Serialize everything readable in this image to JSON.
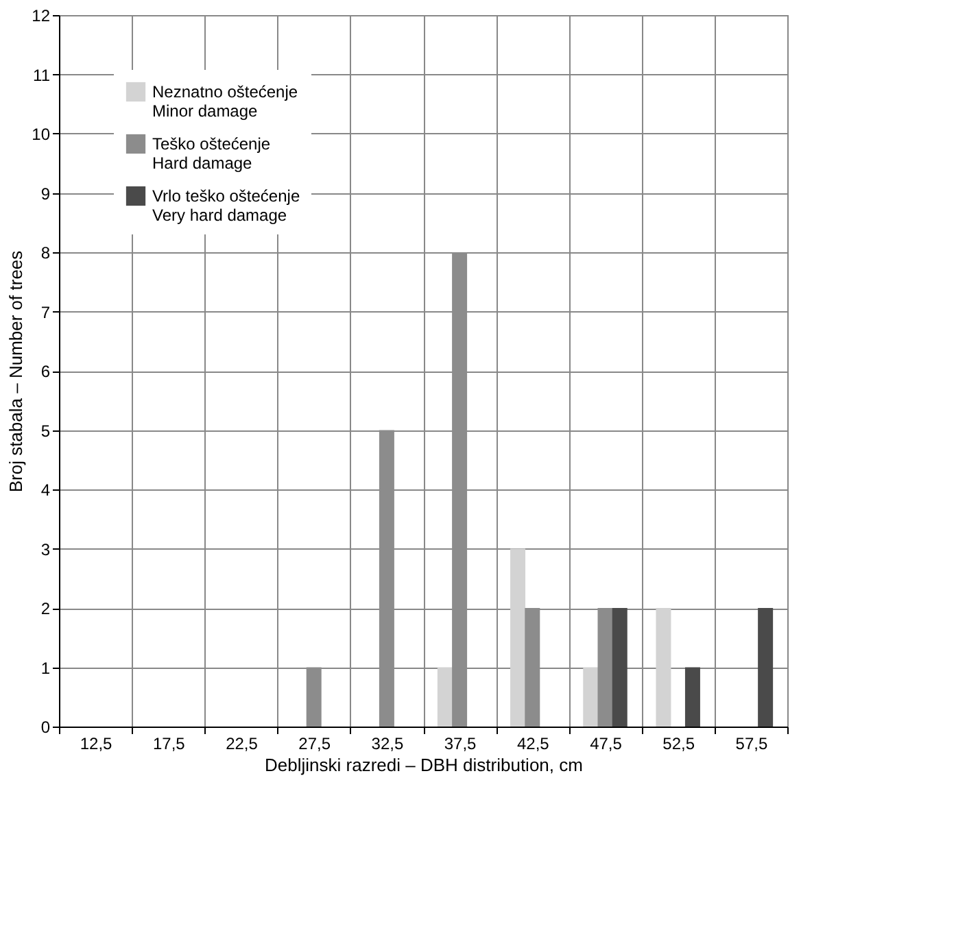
{
  "chart_data": {
    "type": "bar",
    "xlabel": "Debljinski razredi – DBH distribution, cm",
    "ylabel": "Broj stabala – Number of trees",
    "categories": [
      "12,5",
      "17,5",
      "22,5",
      "27,5",
      "32,5",
      "37,5",
      "42,5",
      "47,5",
      "52,5",
      "57,5"
    ],
    "series": [
      {
        "name": "Neznatno oštećenje\nMinor damage",
        "color": "#d3d3d3",
        "values": [
          null,
          null,
          null,
          null,
          null,
          1,
          3,
          1,
          2,
          null
        ]
      },
      {
        "name": "Teško oštećenje\nHard damage",
        "color": "#8c8c8c",
        "values": [
          null,
          null,
          null,
          1,
          5,
          8,
          2,
          2,
          null,
          null
        ]
      },
      {
        "name": "Vrlo teško oštećenje\nVery hard damage",
        "color": "#4a4a4a",
        "values": [
          null,
          null,
          null,
          null,
          null,
          null,
          null,
          2,
          1,
          2
        ]
      }
    ],
    "ylim": [
      0,
      12
    ],
    "yticks": [
      0,
      1,
      2,
      3,
      4,
      5,
      6,
      7,
      8,
      9,
      10,
      11,
      12
    ],
    "grid": true,
    "legend": "top left"
  }
}
